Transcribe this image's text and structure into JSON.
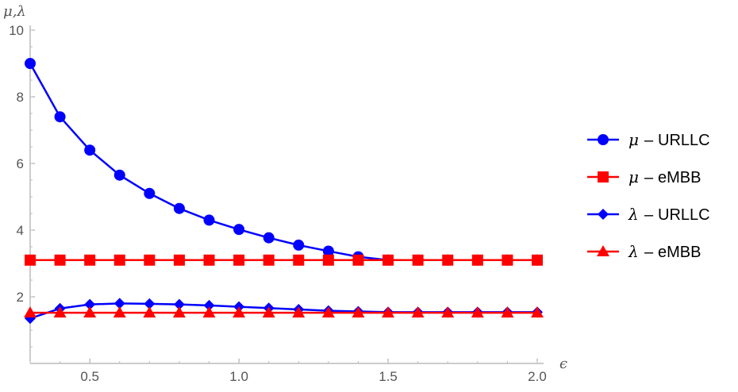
{
  "chart_data": {
    "type": "line",
    "title": "",
    "xlabel": "ϵ",
    "ylabel": "μ,λ",
    "xlim": [
      0.3,
      2.0
    ],
    "ylim": [
      0,
      10
    ],
    "x_ticks": [
      0.5,
      1.0,
      1.5,
      2.0
    ],
    "x_tick_labels": [
      "0.5",
      "1.0",
      "1.5",
      "2.0"
    ],
    "y_ticks": [
      2,
      4,
      6,
      8,
      10
    ],
    "y_tick_labels": [
      "2",
      "4",
      "6",
      "8",
      "10"
    ],
    "grid": false,
    "legend_position": "right",
    "x": [
      0.3,
      0.4,
      0.5,
      0.6,
      0.7,
      0.8,
      0.9,
      1.0,
      1.1,
      1.2,
      1.3,
      1.4,
      1.5,
      1.6,
      1.7,
      1.8,
      1.9,
      2.0
    ],
    "series": [
      {
        "name": "μ – URLLC",
        "symbol": "μ",
        "label": "URLLC",
        "color": "#0000ff",
        "marker": "circle",
        "values": [
          9.0,
          7.4,
          6.4,
          5.65,
          5.1,
          4.65,
          4.3,
          4.02,
          3.77,
          3.55,
          3.37,
          3.2,
          3.1,
          3.1,
          3.1,
          3.1,
          3.1,
          3.1
        ]
      },
      {
        "name": "μ – eMBB",
        "symbol": "μ",
        "label": "eMBB",
        "color": "#ff0000",
        "marker": "square",
        "values": [
          3.1,
          3.1,
          3.1,
          3.1,
          3.1,
          3.1,
          3.1,
          3.1,
          3.1,
          3.1,
          3.1,
          3.1,
          3.1,
          3.1,
          3.1,
          3.1,
          3.1,
          3.1
        ]
      },
      {
        "name": "λ – URLLC",
        "symbol": "λ",
        "label": "URLLC",
        "color": "#0000ff",
        "marker": "diamond",
        "values": [
          1.35,
          1.65,
          1.77,
          1.8,
          1.79,
          1.77,
          1.74,
          1.7,
          1.66,
          1.62,
          1.58,
          1.56,
          1.54,
          1.54,
          1.54,
          1.54,
          1.54,
          1.54
        ]
      },
      {
        "name": "λ – eMBB",
        "symbol": "λ",
        "label": "eMBB",
        "color": "#ff0000",
        "marker": "triangle",
        "values": [
          1.52,
          1.52,
          1.52,
          1.52,
          1.52,
          1.52,
          1.52,
          1.52,
          1.52,
          1.52,
          1.52,
          1.52,
          1.52,
          1.52,
          1.52,
          1.52,
          1.52,
          1.52
        ]
      }
    ]
  }
}
